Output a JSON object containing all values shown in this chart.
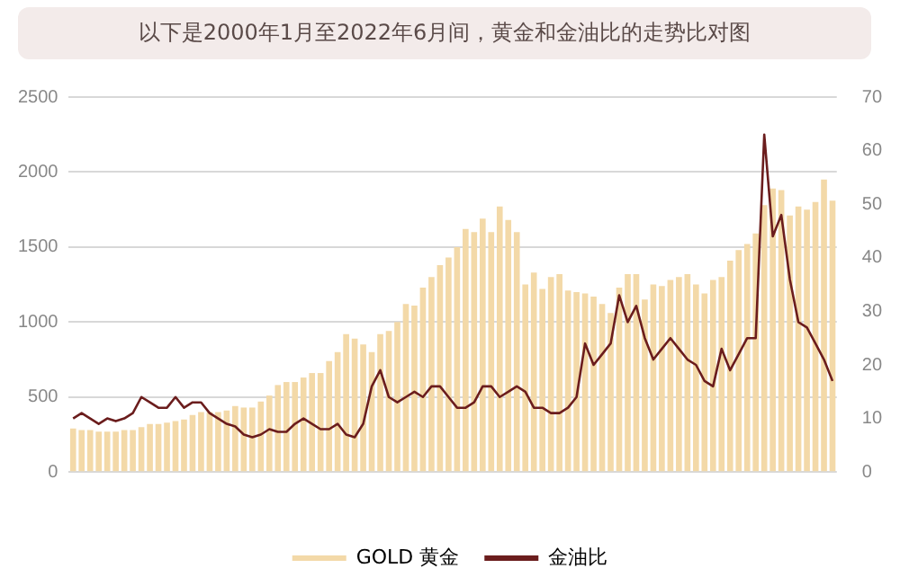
{
  "chart_data": {
    "type": "bar",
    "title": "以下是2000年1月至2022年6月间，黄金和金油比的走势比对图",
    "categories": [
      null,
      null,
      null,
      null,
      null,
      null,
      null,
      null,
      null,
      null,
      null,
      null,
      null,
      null,
      null,
      null,
      null,
      null,
      null,
      null,
      null,
      null,
      null,
      null,
      null,
      null,
      null,
      null,
      null,
      null,
      null,
      null,
      null,
      null,
      null,
      null,
      null,
      null,
      null,
      null,
      null,
      null,
      null,
      null,
      null,
      null,
      null,
      null,
      null,
      null,
      null,
      null,
      null,
      null,
      null,
      null,
      null,
      null,
      null,
      null,
      null,
      null,
      null,
      null,
      null,
      null,
      null,
      null,
      null,
      null,
      null,
      null,
      null,
      null,
      null,
      null,
      null,
      null,
      null,
      null,
      null,
      null,
      null,
      null,
      null,
      null,
      null,
      null,
      null,
      null
    ],
    "series": [
      {
        "name": "GOLD 黄金",
        "color": "#f3d9a8",
        "values": [
          290,
          280,
          280,
          270,
          270,
          270,
          280,
          280,
          300,
          320,
          320,
          330,
          340,
          350,
          380,
          400,
          400,
          400,
          410,
          440,
          430,
          430,
          470,
          510,
          580,
          600,
          600,
          630,
          660,
          660,
          740,
          800,
          920,
          890,
          850,
          800,
          920,
          940,
          1000,
          1120,
          1110,
          1230,
          1300,
          1380,
          1430,
          1500,
          1620,
          1600,
          1690,
          1600,
          1770,
          1680,
          1600,
          1250,
          1330,
          1220,
          1300,
          1320,
          1210,
          1200,
          1190,
          1170,
          1120,
          1060,
          1230,
          1320,
          1320,
          1150,
          1250,
          1240,
          1280,
          1300,
          1320,
          1250,
          1190,
          1280,
          1300,
          1410,
          1480,
          1520,
          1590,
          1780,
          1890,
          1880,
          1710,
          1770,
          1750,
          1800,
          1950,
          1810
        ]
      },
      {
        "name": "金油比",
        "type": "line",
        "axis": "y2",
        "color": "#6b1d1d",
        "values": [
          10,
          11,
          10,
          9,
          10,
          9.5,
          10,
          11,
          14,
          13,
          12,
          12,
          14,
          12,
          13,
          13,
          11,
          10,
          9,
          8.5,
          7,
          6.5,
          7,
          8,
          7.5,
          7.5,
          9,
          10,
          9,
          8,
          8,
          9,
          7,
          6.5,
          9,
          16,
          19,
          14,
          13,
          14,
          15,
          14,
          16,
          16,
          14,
          12,
          12,
          13,
          16,
          16,
          14,
          15,
          16,
          15,
          12,
          12,
          11,
          11,
          12,
          14,
          24,
          20,
          22,
          24,
          33,
          28,
          31,
          25,
          21,
          23,
          25,
          23,
          21,
          20,
          17,
          16,
          23,
          19,
          22,
          25,
          25,
          63,
          44,
          48,
          36,
          28,
          27,
          24,
          21,
          17
        ]
      }
    ],
    "ylim": [
      0,
      2500
    ],
    "yticks": [
      0,
      500,
      1000,
      1500,
      2000,
      2500
    ],
    "y2lim": [
      0,
      70
    ],
    "y2ticks": [
      0,
      10,
      20,
      30,
      40,
      50,
      60,
      70
    ],
    "grid": "y",
    "legend": "bottom",
    "marker": "none"
  }
}
